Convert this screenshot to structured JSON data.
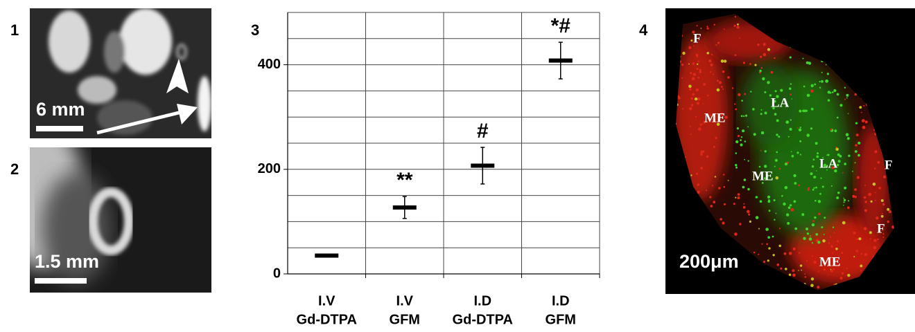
{
  "panels": [
    {
      "label": "1",
      "scale": "6 mm"
    },
    {
      "label": "2",
      "scale": "1.5 mm"
    },
    {
      "label": "3"
    },
    {
      "label": "4",
      "scale": "200μm",
      "annotations": [
        "F",
        "ME",
        "LA",
        "LA",
        "F",
        "ME",
        "F",
        "ME"
      ]
    }
  ],
  "chart_data": {
    "type": "mean-error",
    "categories": [
      [
        "I.V",
        "Gd-DTPA"
      ],
      [
        "I.V",
        "GFM"
      ],
      [
        "I.D",
        "Gd-DTPA"
      ],
      [
        "I.D",
        "GFM"
      ]
    ],
    "values": [
      35,
      127,
      207,
      408
    ],
    "errors": [
      null,
      21,
      35,
      35
    ],
    "markers": [
      null,
      "**",
      "#",
      "*#"
    ],
    "color": "#000000",
    "ylim": [
      0,
      500
    ],
    "yticks": [
      0,
      200,
      400
    ],
    "ygrid": [
      0,
      50,
      100,
      150,
      200,
      250,
      300,
      350,
      400,
      450,
      500
    ],
    "grid": true
  }
}
